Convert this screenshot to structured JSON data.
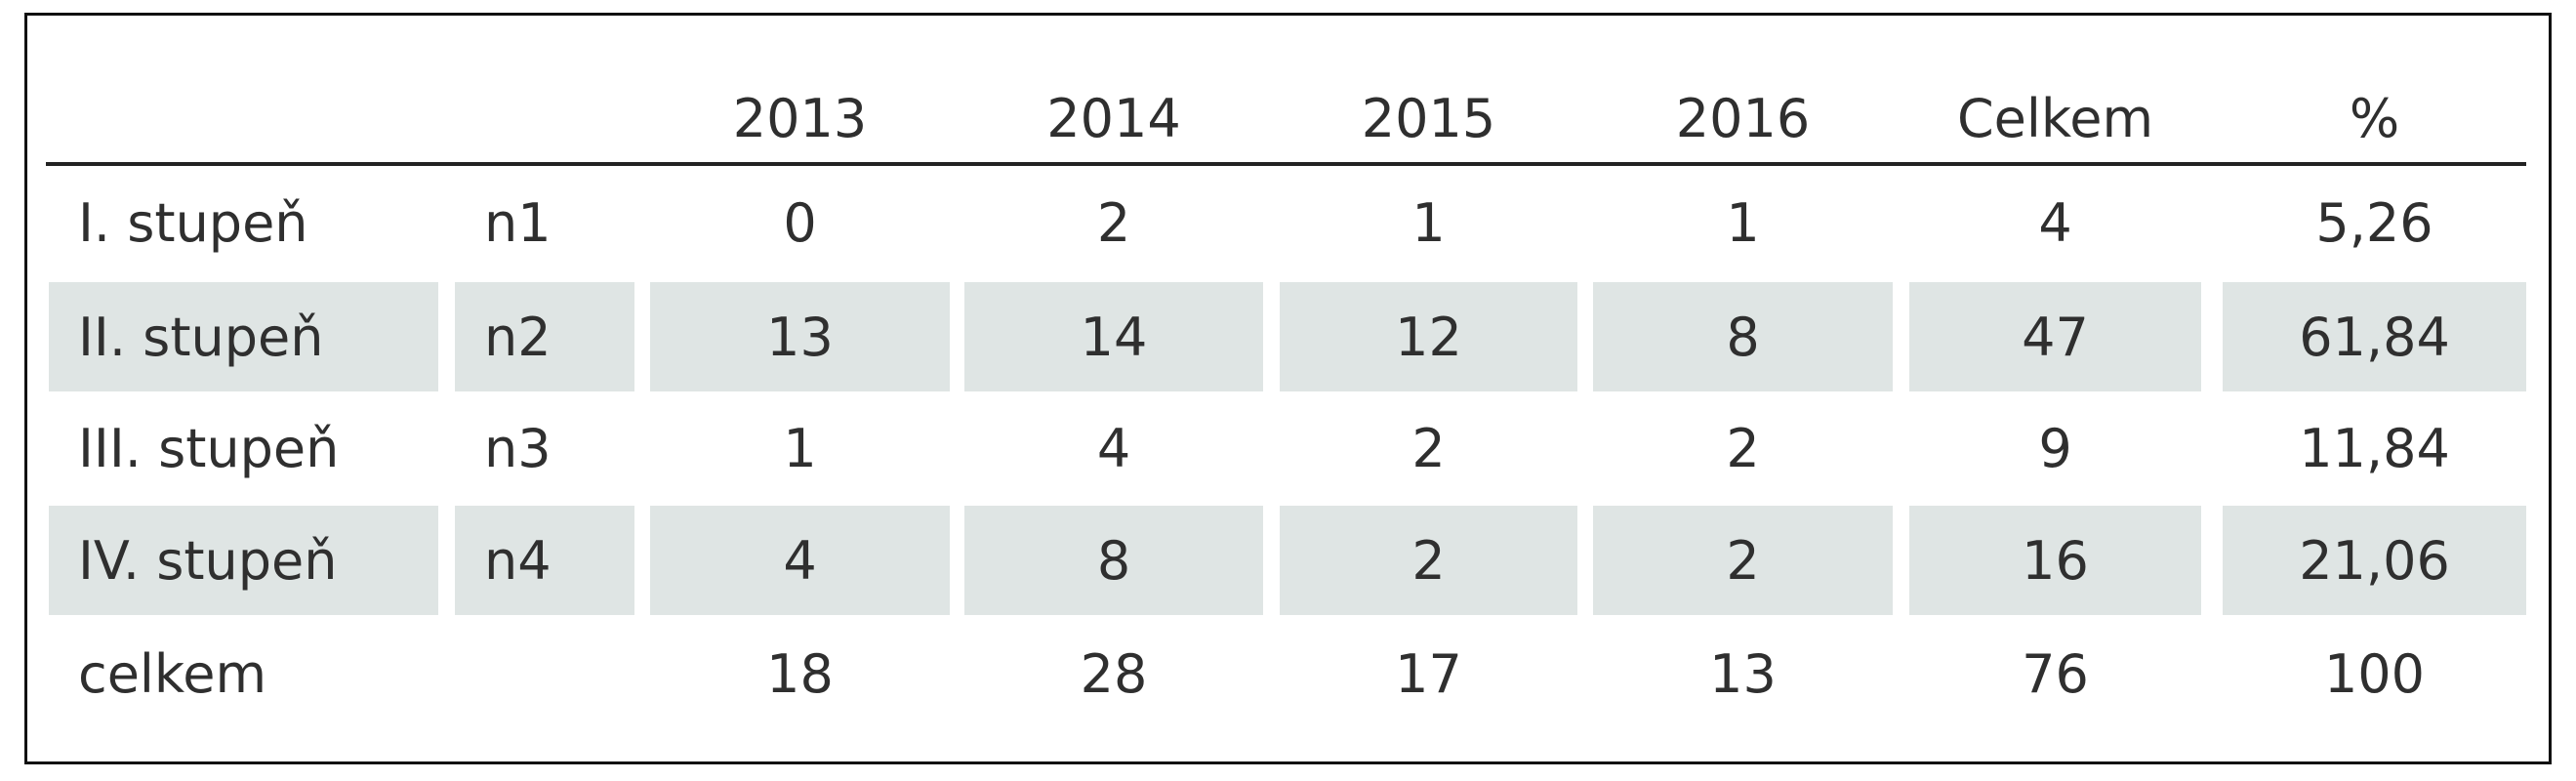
{
  "table": {
    "header": [
      "2013",
      "2014",
      "2015",
      "2016",
      "Celkem",
      "%"
    ],
    "rows": [
      {
        "label": "I. stupeň",
        "n": "n1",
        "values": [
          0,
          2,
          1,
          1,
          4,
          "5,26"
        ]
      },
      {
        "label": "II. stupeň",
        "n": "n2",
        "values": [
          13,
          14,
          12,
          8,
          47,
          "61,84"
        ]
      },
      {
        "label": "III. stupeň",
        "n": "n3",
        "values": [
          1,
          4,
          2,
          2,
          9,
          "11,84"
        ]
      },
      {
        "label": "IV. stupeň",
        "n": "n4",
        "values": [
          4,
          8,
          2,
          2,
          16,
          "21,06"
        ]
      },
      {
        "label": "celkem",
        "values": [
          18,
          28,
          17,
          13,
          76,
          100
        ]
      }
    ]
  }
}
